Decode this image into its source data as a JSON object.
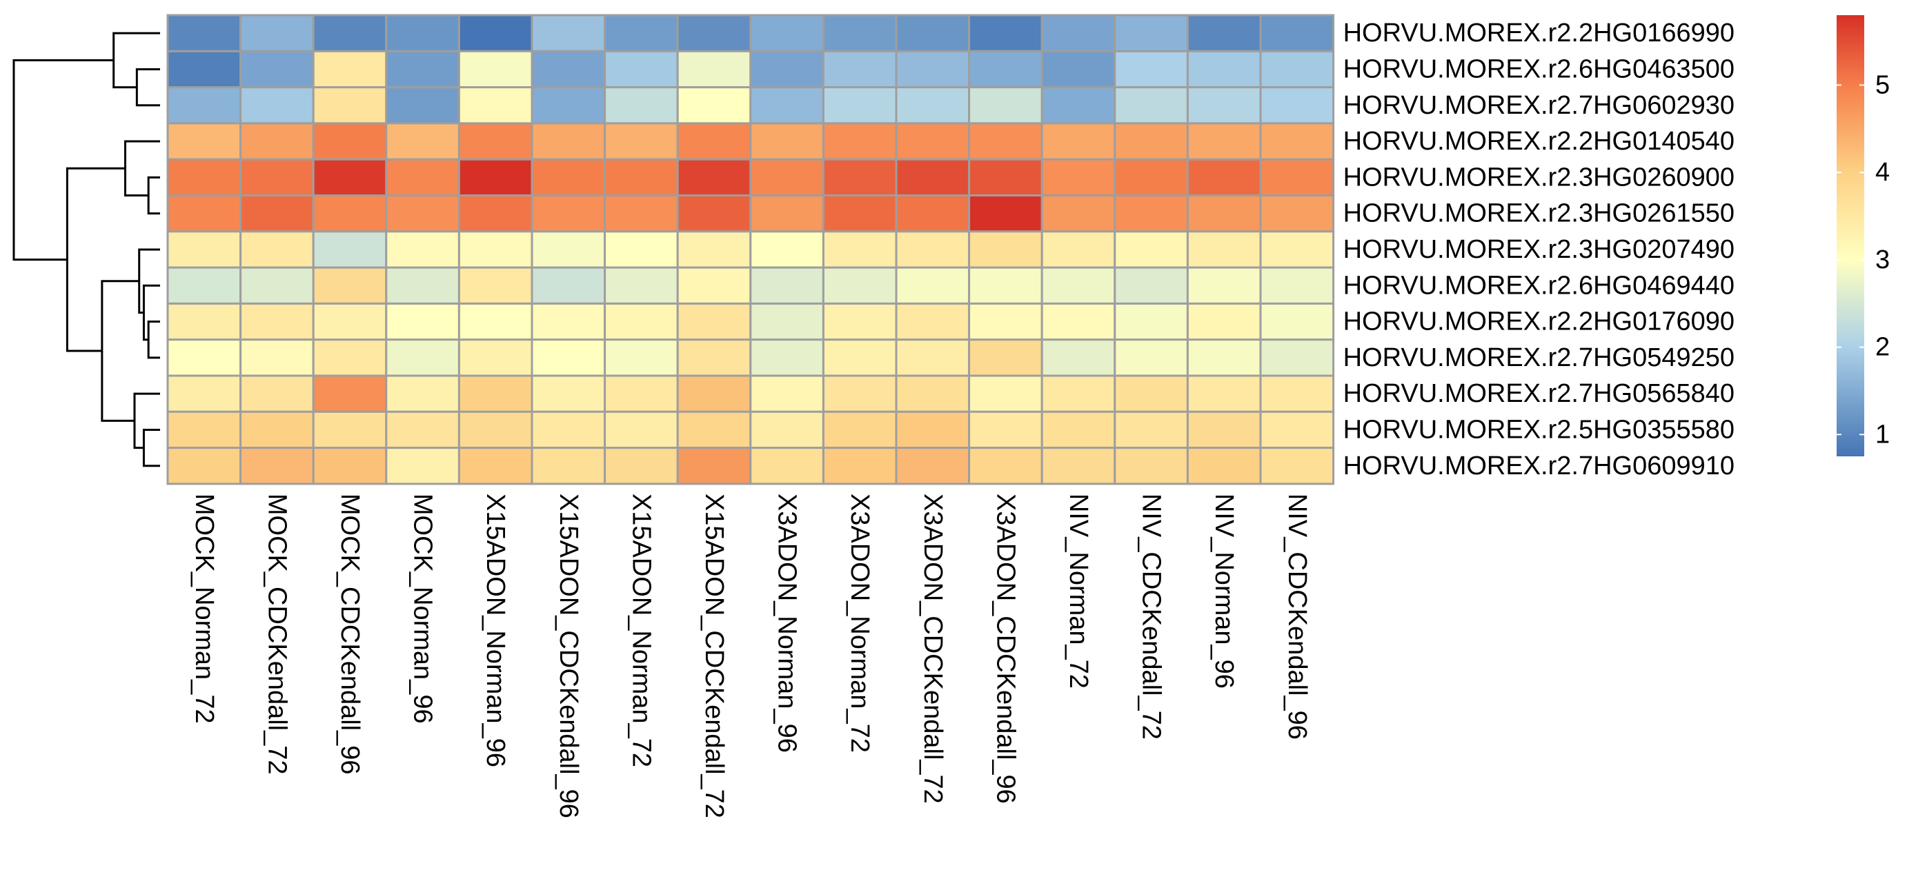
{
  "chart_data": {
    "type": "heatmap",
    "title": "",
    "rows": [
      "HORVU.MOREX.r2.2HG0166990",
      "HORVU.MOREX.r2.6HG0463500",
      "HORVU.MOREX.r2.7HG0602930",
      "HORVU.MOREX.r2.2HG0140540",
      "HORVU.MOREX.r2.3HG0260900",
      "HORVU.MOREX.r2.3HG0261550",
      "HORVU.MOREX.r2.3HG0207490",
      "HORVU.MOREX.r2.6HG0469440",
      "HORVU.MOREX.r2.2HG0176090",
      "HORVU.MOREX.r2.7HG0549250",
      "HORVU.MOREX.r2.7HG0565840",
      "HORVU.MOREX.r2.5HG0355580",
      "HORVU.MOREX.r2.7HG0609910"
    ],
    "columns": [
      "MOCK_Norman_72",
      "MOCK_CDCKendall_72",
      "MOCK_CDCKendall_96",
      "MOCK_Norman_96",
      "X15ADON_Norman_96",
      "X15ADON_CDCKendall_96",
      "X15ADON_Norman_72",
      "X15ADON_CDCKendall_72",
      "X3ADON_Norman_96",
      "X3ADON_Norman_72",
      "X3ADON_CDCKendall_72",
      "X3ADON_CDCKendall_96",
      "NIV_Norman_72",
      "NIV_CDCKendall_72",
      "NIV_Norman_96",
      "NIV_CDCKendall_96"
    ],
    "values": [
      [
        1.0,
        1.6,
        1.0,
        1.2,
        0.75,
        1.8,
        1.3,
        1.1,
        1.5,
        1.3,
        1.2,
        0.9,
        1.4,
        1.6,
        1.0,
        1.2
      ],
      [
        0.9,
        1.4,
        3.5,
        1.3,
        2.9,
        1.4,
        1.9,
        2.8,
        1.4,
        1.8,
        1.7,
        1.5,
        1.3,
        2.0,
        1.9,
        1.9
      ],
      [
        1.6,
        1.9,
        3.6,
        1.3,
        3.1,
        1.5,
        2.3,
        3.0,
        1.7,
        2.1,
        2.1,
        2.4,
        1.5,
        2.2,
        2.1,
        2.0
      ],
      [
        4.3,
        4.6,
        5.0,
        4.3,
        4.9,
        4.5,
        4.4,
        4.9,
        4.5,
        4.8,
        4.8,
        4.8,
        4.5,
        4.6,
        4.5,
        4.5
      ],
      [
        5.0,
        5.1,
        5.7,
        4.9,
        5.8,
        5.0,
        5.0,
        5.6,
        4.9,
        5.3,
        5.5,
        5.4,
        4.8,
        5.0,
        5.2,
        4.9
      ],
      [
        4.9,
        5.2,
        4.9,
        4.8,
        5.1,
        4.8,
        4.8,
        5.3,
        4.7,
        5.2,
        5.1,
        5.8,
        4.7,
        4.8,
        4.7,
        4.6
      ],
      [
        3.4,
        3.5,
        2.4,
        3.1,
        3.1,
        2.9,
        3.0,
        3.3,
        3.0,
        3.4,
        3.5,
        3.7,
        3.4,
        3.2,
        3.4,
        3.3
      ],
      [
        2.5,
        2.6,
        3.8,
        2.6,
        3.5,
        2.4,
        2.7,
        3.2,
        2.6,
        2.7,
        2.9,
        2.9,
        2.8,
        2.6,
        2.9,
        2.8
      ],
      [
        3.4,
        3.5,
        3.3,
        3.0,
        3.0,
        3.1,
        3.2,
        3.6,
        2.7,
        3.3,
        3.5,
        3.1,
        3.1,
        2.9,
        3.2,
        2.9
      ],
      [
        3.0,
        3.1,
        3.5,
        2.8,
        3.3,
        3.0,
        2.9,
        3.6,
        2.7,
        3.3,
        3.4,
        3.8,
        2.7,
        2.9,
        2.9,
        2.7
      ],
      [
        3.4,
        3.6,
        4.8,
        3.3,
        4.0,
        3.3,
        3.5,
        4.2,
        3.2,
        3.6,
        3.7,
        3.2,
        3.5,
        3.7,
        3.5,
        3.5
      ],
      [
        3.9,
        4.0,
        3.7,
        3.6,
        3.8,
        3.5,
        3.4,
        3.9,
        3.4,
        3.9,
        4.1,
        3.5,
        3.7,
        3.6,
        3.8,
        3.5
      ],
      [
        4.0,
        4.3,
        4.2,
        3.3,
        4.1,
        3.7,
        3.8,
        4.7,
        3.7,
        4.1,
        4.3,
        3.9,
        3.8,
        3.8,
        4.0,
        3.7
      ]
    ],
    "color_scale": {
      "min": 0.75,
      "max": 5.8,
      "stops": [
        {
          "value": 0.75,
          "color": "#4575b4"
        },
        {
          "value": 2.0,
          "color": "#abd0e7"
        },
        {
          "value": 3.0,
          "color": "#ffffbf"
        },
        {
          "value": 4.0,
          "color": "#fdd185"
        },
        {
          "value": 5.0,
          "color": "#f57f4b"
        },
        {
          "value": 5.8,
          "color": "#d73027"
        }
      ]
    },
    "legend": {
      "placement": "right",
      "ticks": [
        "1",
        "2",
        "3",
        "4",
        "5"
      ],
      "tick_values": [
        1,
        2,
        3,
        4,
        5
      ]
    },
    "row_dendrogram": {
      "placement": "left",
      "merges": [
        {
          "left": "r:1",
          "right": "r:2",
          "height": 1.0
        },
        {
          "left": "r:0",
          "right": "n:0",
          "height": 2.0
        },
        {
          "left": "r:4",
          "right": "r:5",
          "height": 0.5
        },
        {
          "left": "r:3",
          "right": "n:2",
          "height": 1.5
        },
        {
          "left": "r:8",
          "right": "r:9",
          "height": 0.5
        },
        {
          "left": "r:7",
          "right": "n:4",
          "height": 0.7
        },
        {
          "left": "r:6",
          "right": "n:5",
          "height": 0.9
        },
        {
          "left": "r:11",
          "right": "r:12",
          "height": 0.7
        },
        {
          "left": "r:10",
          "right": "n:7",
          "height": 1.1
        },
        {
          "left": "n:6",
          "right": "n:8",
          "height": 2.5
        },
        {
          "left": "n:3",
          "right": "n:9",
          "height": 4.0
        },
        {
          "left": "n:1",
          "right": "n:10",
          "height": 6.3
        }
      ]
    }
  }
}
